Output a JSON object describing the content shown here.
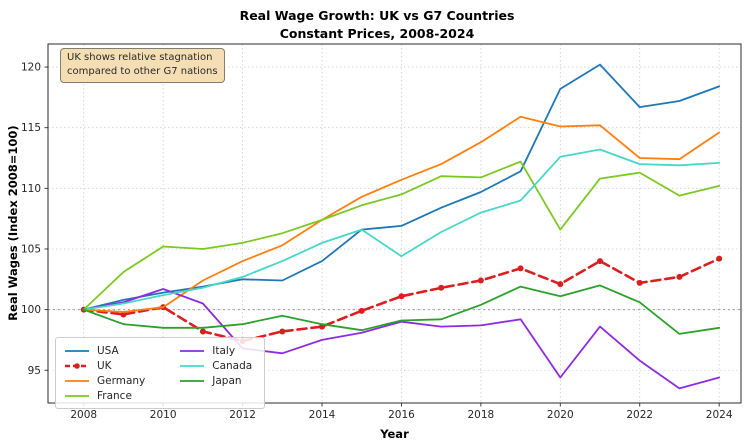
{
  "figure": {
    "title_line1": "Real Wage Growth: UK vs G7 Countries",
    "title_line2": "Constant Prices, 2008-2024",
    "annotation_line1": "UK shows relative stagnation",
    "annotation_line2": "compared to other G7 nations",
    "annotation_bg": "#f5deb3"
  },
  "chart_data": {
    "type": "line",
    "title": "Real Wage Growth: UK vs G7 Countries — Constant Prices, 2008-2024",
    "xlabel": "Year",
    "ylabel": "Real Wages (Index 2008=100)",
    "x": [
      2008,
      2009,
      2010,
      2011,
      2012,
      2013,
      2014,
      2015,
      2016,
      2017,
      2018,
      2019,
      2020,
      2021,
      2022,
      2023,
      2024
    ],
    "x_ticks": [
      2008,
      2010,
      2012,
      2014,
      2016,
      2018,
      2020,
      2022,
      2024
    ],
    "y_ticks": [
      95,
      100,
      105,
      110,
      115,
      120
    ],
    "xlim": [
      2007.1,
      2024.55
    ],
    "ylim": [
      92.3,
      121.9
    ],
    "grid": true,
    "reference_line_y": 100,
    "legend_position": "lower left",
    "legend_order": [
      "USA",
      "UK",
      "Germany",
      "France",
      "Italy",
      "Canada",
      "Japan"
    ],
    "series": [
      {
        "name": "USA",
        "color": "#1f77b4",
        "style": "solid",
        "values": [
          100,
          100.8,
          101.4,
          101.9,
          102.5,
          102.4,
          104.0,
          106.6,
          106.9,
          108.4,
          109.7,
          111.4,
          118.2,
          120.2,
          116.7,
          117.2,
          118.4
        ]
      },
      {
        "name": "UK",
        "color": "#d91f1f",
        "style": "dashed",
        "marker": "circle",
        "values": [
          100,
          99.6,
          100.2,
          98.2,
          97.4,
          98.2,
          98.6,
          99.9,
          101.1,
          101.8,
          102.4,
          103.4,
          102.1,
          104.0,
          102.2,
          102.7,
          104.2
        ]
      },
      {
        "name": "Germany",
        "color": "#ff7f0e",
        "style": "solid",
        "values": [
          100,
          99.8,
          100.2,
          102.4,
          104.0,
          105.3,
          107.4,
          109.3,
          110.7,
          112.0,
          113.8,
          115.9,
          115.1,
          115.2,
          112.5,
          112.4,
          114.6
        ]
      },
      {
        "name": "France",
        "color": "#7cc823",
        "style": "solid",
        "values": [
          100,
          103.1,
          105.2,
          105.0,
          105.5,
          106.3,
          107.4,
          108.6,
          109.5,
          111.0,
          110.9,
          112.2,
          106.6,
          110.8,
          111.3,
          109.4,
          110.2
        ]
      },
      {
        "name": "Italy",
        "color": "#8d2be0",
        "style": "solid",
        "values": [
          100,
          100.6,
          101.7,
          100.5,
          96.8,
          96.4,
          97.5,
          98.1,
          99.0,
          98.6,
          98.7,
          99.2,
          94.4,
          98.6,
          95.8,
          93.5,
          94.4
        ]
      },
      {
        "name": "Canada",
        "color": "#46d7c8",
        "style": "solid",
        "values": [
          100,
          100.5,
          101.2,
          101.8,
          102.7,
          104.0,
          105.5,
          106.6,
          104.4,
          106.4,
          108.0,
          109.0,
          112.6,
          113.2,
          112.0,
          111.9,
          112.1
        ]
      },
      {
        "name": "Japan",
        "color": "#2ca02c",
        "style": "solid",
        "values": [
          100,
          98.8,
          98.5,
          98.5,
          98.8,
          99.5,
          98.8,
          98.3,
          99.1,
          99.2,
          100.4,
          101.9,
          101.1,
          102.0,
          100.6,
          98.0,
          98.5
        ]
      }
    ]
  }
}
